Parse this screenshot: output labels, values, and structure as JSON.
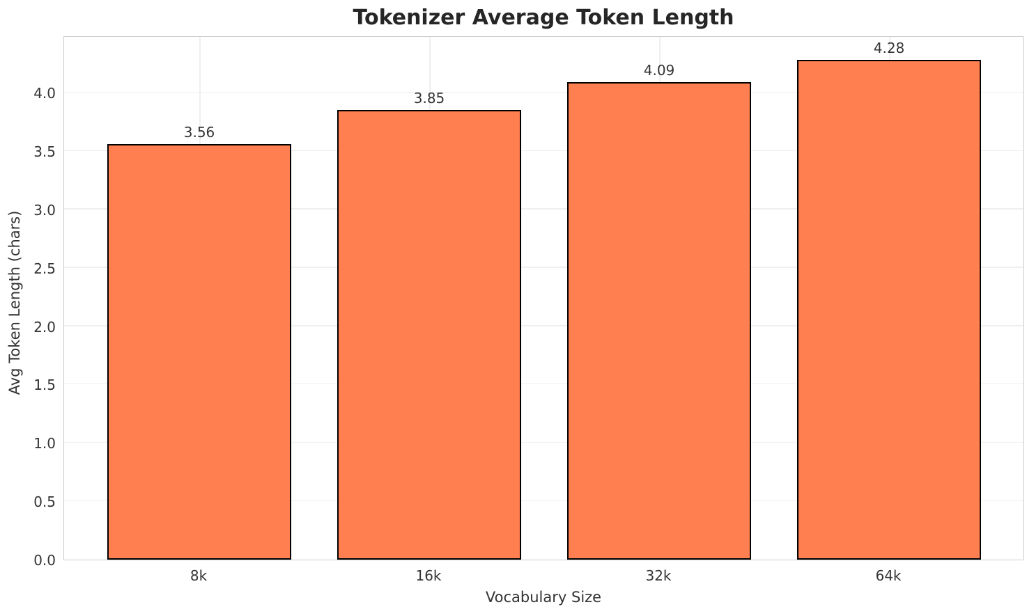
{
  "title": "Tokenizer Average Token Length",
  "colors": {
    "bar_fill": "#FF7F50",
    "bar_edge": "#000000",
    "grid": "#efefef",
    "spine": "#cccccc",
    "title_text": "#262626",
    "tick_text": "#333333"
  },
  "chart_data": {
    "type": "bar",
    "categories": [
      "8k",
      "16k",
      "32k",
      "64k"
    ],
    "values": [
      3.56,
      3.85,
      4.09,
      4.28
    ],
    "bar_labels": [
      "3.56",
      "3.85",
      "4.09",
      "4.28"
    ],
    "title": "Tokenizer Average Token Length",
    "xlabel": "Vocabulary Size",
    "ylabel": "Avg Token Length (chars)",
    "ylim": [
      0,
      4.49
    ],
    "yticks": [
      "0.0",
      "0.5",
      "1.0",
      "1.5",
      "2.0",
      "2.5",
      "3.0",
      "3.5",
      "4.0"
    ],
    "grid": true,
    "legend": null
  }
}
